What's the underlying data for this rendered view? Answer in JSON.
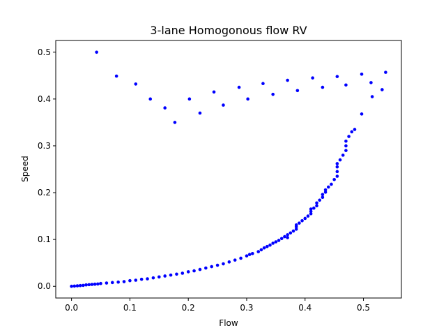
{
  "chart_data": {
    "type": "scatter",
    "title": "3-lane Homogonous flow RV",
    "xlabel": "Flow",
    "ylabel": "Speed",
    "xlim": [
      -0.027,
      0.565
    ],
    "ylim": [
      -0.025,
      0.525
    ],
    "xticks": [
      0.0,
      0.1,
      0.2,
      0.3,
      0.4,
      0.5
    ],
    "xtick_labels": [
      "0.0",
      "0.1",
      "0.2",
      "0.3",
      "0.4",
      "0.5"
    ],
    "yticks": [
      0.0,
      0.1,
      0.2,
      0.3,
      0.4,
      0.5
    ],
    "ytick_labels": [
      "0.0",
      "0.1",
      "0.2",
      "0.3",
      "0.4",
      "0.5"
    ],
    "grid": false,
    "marker_color": "#0000ff",
    "series": [
      {
        "points": [
          [
            0.0,
            0.0
          ],
          [
            0.005,
            0.0005
          ],
          [
            0.01,
            0.001
          ],
          [
            0.015,
            0.0015
          ],
          [
            0.02,
            0.002
          ],
          [
            0.025,
            0.003
          ],
          [
            0.03,
            0.0035
          ],
          [
            0.035,
            0.004
          ],
          [
            0.04,
            0.0045
          ],
          [
            0.045,
            0.005
          ],
          [
            0.05,
            0.006
          ],
          [
            0.06,
            0.007
          ],
          [
            0.07,
            0.008
          ],
          [
            0.08,
            0.009
          ],
          [
            0.09,
            0.01
          ],
          [
            0.1,
            0.012
          ],
          [
            0.11,
            0.013
          ],
          [
            0.12,
            0.015
          ],
          [
            0.13,
            0.016
          ],
          [
            0.14,
            0.018
          ],
          [
            0.15,
            0.02
          ],
          [
            0.16,
            0.022
          ],
          [
            0.17,
            0.024
          ],
          [
            0.18,
            0.026
          ],
          [
            0.19,
            0.028
          ],
          [
            0.2,
            0.031
          ],
          [
            0.21,
            0.033
          ],
          [
            0.22,
            0.036
          ],
          [
            0.23,
            0.039
          ],
          [
            0.24,
            0.042
          ],
          [
            0.25,
            0.045
          ],
          [
            0.26,
            0.048
          ],
          [
            0.27,
            0.052
          ],
          [
            0.28,
            0.056
          ],
          [
            0.29,
            0.06
          ],
          [
            0.3,
            0.065
          ],
          [
            0.305,
            0.068
          ],
          [
            0.31,
            0.07
          ],
          [
            0.32,
            0.074
          ],
          [
            0.325,
            0.078
          ],
          [
            0.33,
            0.082
          ],
          [
            0.335,
            0.085
          ],
          [
            0.34,
            0.088
          ],
          [
            0.345,
            0.092
          ],
          [
            0.35,
            0.095
          ],
          [
            0.355,
            0.098
          ],
          [
            0.36,
            0.102
          ],
          [
            0.365,
            0.106
          ],
          [
            0.37,
            0.11
          ],
          [
            0.37,
            0.104
          ],
          [
            0.375,
            0.114
          ],
          [
            0.38,
            0.118
          ],
          [
            0.385,
            0.122
          ],
          [
            0.385,
            0.127
          ],
          [
            0.385,
            0.131
          ],
          [
            0.39,
            0.135
          ],
          [
            0.395,
            0.14
          ],
          [
            0.4,
            0.145
          ],
          [
            0.405,
            0.15
          ],
          [
            0.41,
            0.155
          ],
          [
            0.41,
            0.16
          ],
          [
            0.41,
            0.165
          ],
          [
            0.415,
            0.167
          ],
          [
            0.42,
            0.172
          ],
          [
            0.42,
            0.178
          ],
          [
            0.425,
            0.184
          ],
          [
            0.43,
            0.19
          ],
          [
            0.43,
            0.196
          ],
          [
            0.435,
            0.201
          ],
          [
            0.435,
            0.206
          ],
          [
            0.44,
            0.212
          ],
          [
            0.445,
            0.218
          ],
          [
            0.45,
            0.228
          ],
          [
            0.455,
            0.235
          ],
          [
            0.455,
            0.245
          ],
          [
            0.455,
            0.255
          ],
          [
            0.455,
            0.262
          ],
          [
            0.46,
            0.27
          ],
          [
            0.465,
            0.28
          ],
          [
            0.47,
            0.29
          ],
          [
            0.47,
            0.3
          ],
          [
            0.47,
            0.31
          ],
          [
            0.475,
            0.32
          ],
          [
            0.48,
            0.33
          ],
          [
            0.485,
            0.335
          ],
          [
            0.043,
            0.5
          ],
          [
            0.077,
            0.449
          ],
          [
            0.11,
            0.432
          ],
          [
            0.135,
            0.4
          ],
          [
            0.16,
            0.381
          ],
          [
            0.177,
            0.35
          ],
          [
            0.202,
            0.4
          ],
          [
            0.22,
            0.37
          ],
          [
            0.244,
            0.415
          ],
          [
            0.26,
            0.387
          ],
          [
            0.287,
            0.425
          ],
          [
            0.302,
            0.4
          ],
          [
            0.328,
            0.433
          ],
          [
            0.345,
            0.41
          ],
          [
            0.37,
            0.44
          ],
          [
            0.387,
            0.418
          ],
          [
            0.413,
            0.445
          ],
          [
            0.43,
            0.425
          ],
          [
            0.455,
            0.448
          ],
          [
            0.47,
            0.43
          ],
          [
            0.497,
            0.453
          ],
          [
            0.513,
            0.435
          ],
          [
            0.538,
            0.457
          ],
          [
            0.497,
            0.368
          ],
          [
            0.515,
            0.405
          ],
          [
            0.532,
            0.42
          ]
        ]
      }
    ]
  }
}
